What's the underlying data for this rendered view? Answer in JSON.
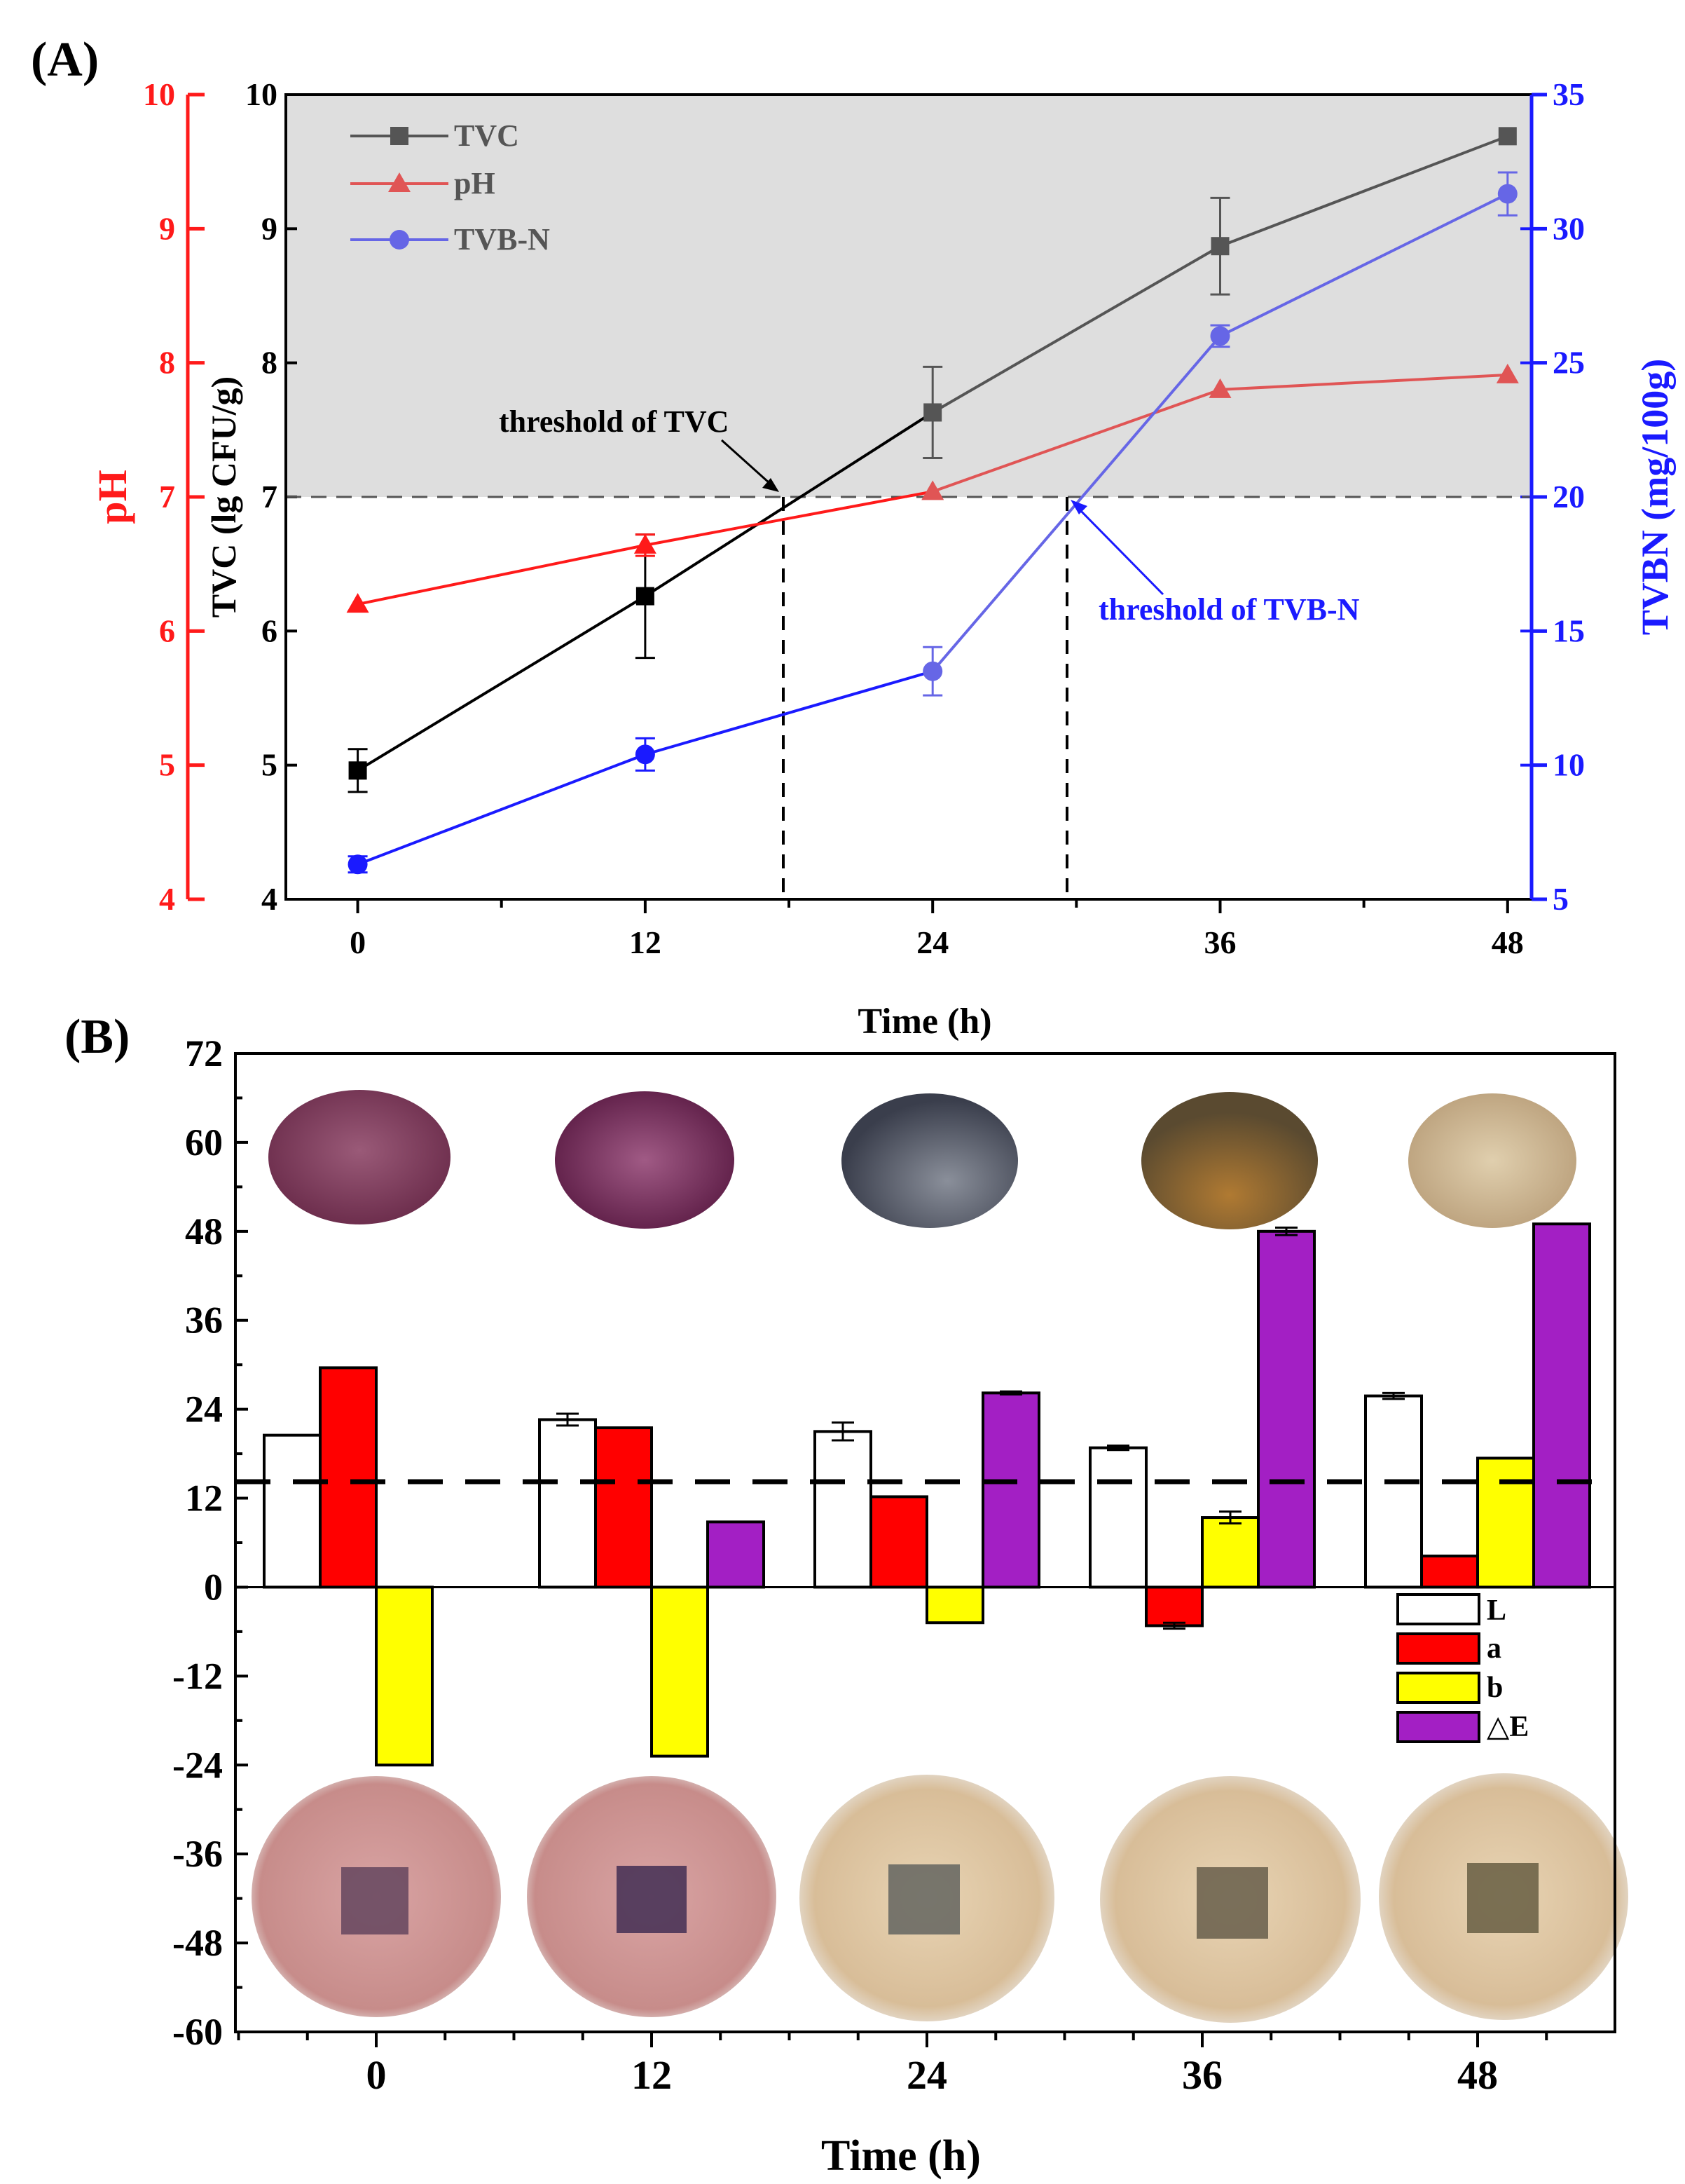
{
  "panel_labels": {
    "a": "(A)",
    "b": "(B)"
  },
  "colors": {
    "tvc": "#000000",
    "tvc_late": "#555555",
    "ph": "#ff1a1a",
    "ph_late": "#e05555",
    "tvbn": "#1a1aff",
    "tvbn_late": "#6666e6",
    "shade": "#dedede",
    "L": "#ffffff",
    "a": "#ff0000",
    "b": "#ffff00",
    "dE": "#a31fc4"
  },
  "chart_data": [
    {
      "type": "line",
      "title": "(A)",
      "xlabel": "Time (h)",
      "ylabel_left_outer": "pH",
      "ylabel_left_inner": "TVC (lg CFU/g)",
      "ylabel_right": "TVBN (mg/100g)",
      "x": [
        0,
        12,
        24,
        36,
        48
      ],
      "xlim": [
        -3,
        49
      ],
      "x_ticks": [
        "0",
        "12",
        "24",
        "36",
        "48"
      ],
      "ph_axis": {
        "range": [
          4,
          10
        ],
        "ticks": [
          "4",
          "5",
          "6",
          "7",
          "8",
          "9",
          "10"
        ]
      },
      "tvc_axis": {
        "range": [
          4,
          10
        ],
        "ticks": [
          "4",
          "5",
          "6",
          "7",
          "8",
          "9",
          "10"
        ]
      },
      "tvbn_axis": {
        "range": [
          5,
          35
        ],
        "ticks": [
          "5",
          "10",
          "15",
          "20",
          "25",
          "30",
          "35"
        ]
      },
      "series": [
        {
          "name": "TVC",
          "axis": "tvc",
          "marker": "square",
          "values": [
            4.96,
            6.26,
            7.63,
            8.87,
            9.69
          ],
          "errors": [
            0.16,
            0.46,
            0.34,
            0.36,
            0.0
          ]
        },
        {
          "name": "pH",
          "axis": "ph",
          "marker": "triangle",
          "values": [
            6.2,
            6.64,
            7.04,
            7.8,
            7.91
          ],
          "errors": [
            0.0,
            0.08,
            0.0,
            0.0,
            0.0
          ]
        },
        {
          "name": "TVB-N",
          "axis": "tvbn",
          "marker": "circle",
          "values": [
            6.3,
            10.4,
            13.5,
            26.0,
            31.3
          ],
          "errors": [
            0.3,
            0.6,
            0.9,
            0.4,
            0.8
          ]
        }
      ],
      "threshold": {
        "value": 7,
        "axis": "tvc"
      },
      "annotations": [
        {
          "text": "threshold of TVC",
          "x": 18,
          "y": 7
        },
        {
          "text": "threshold of TVB-N",
          "x": 30,
          "y": 7
        }
      ],
      "legend": "top-left"
    },
    {
      "type": "bar",
      "title": "(B)",
      "xlabel": "Time (h)",
      "ylabel": "",
      "categories": [
        "0",
        "12",
        "24",
        "36",
        "48"
      ],
      "ylim": [
        -60,
        72
      ],
      "y_ticks": [
        "72",
        "60",
        "48",
        "36",
        "24",
        "12",
        "0",
        "-12",
        "-24",
        "-36",
        "-48",
        "-60"
      ],
      "series": [
        {
          "name": "L",
          "values": [
            20.5,
            22.6,
            21.0,
            18.8,
            25.8
          ],
          "errors": [
            0,
            0.8,
            1.2,
            0.3,
            0.4
          ]
        },
        {
          "name": "a",
          "values": [
            29.6,
            21.5,
            12.2,
            -5.2,
            4.2
          ],
          "errors": [
            0,
            0,
            0,
            0.4,
            0
          ]
        },
        {
          "name": "b",
          "values": [
            -24.0,
            -22.8,
            -4.8,
            9.4,
            17.4
          ],
          "errors": [
            0,
            0,
            0,
            0.8,
            0
          ]
        },
        {
          "name": "△E",
          "values": [
            0,
            8.8,
            26.2,
            48.0,
            49.0
          ],
          "errors": [
            0,
            0,
            0.2,
            0.5,
            0
          ]
        }
      ],
      "threshold": 12,
      "legend": "right"
    }
  ]
}
